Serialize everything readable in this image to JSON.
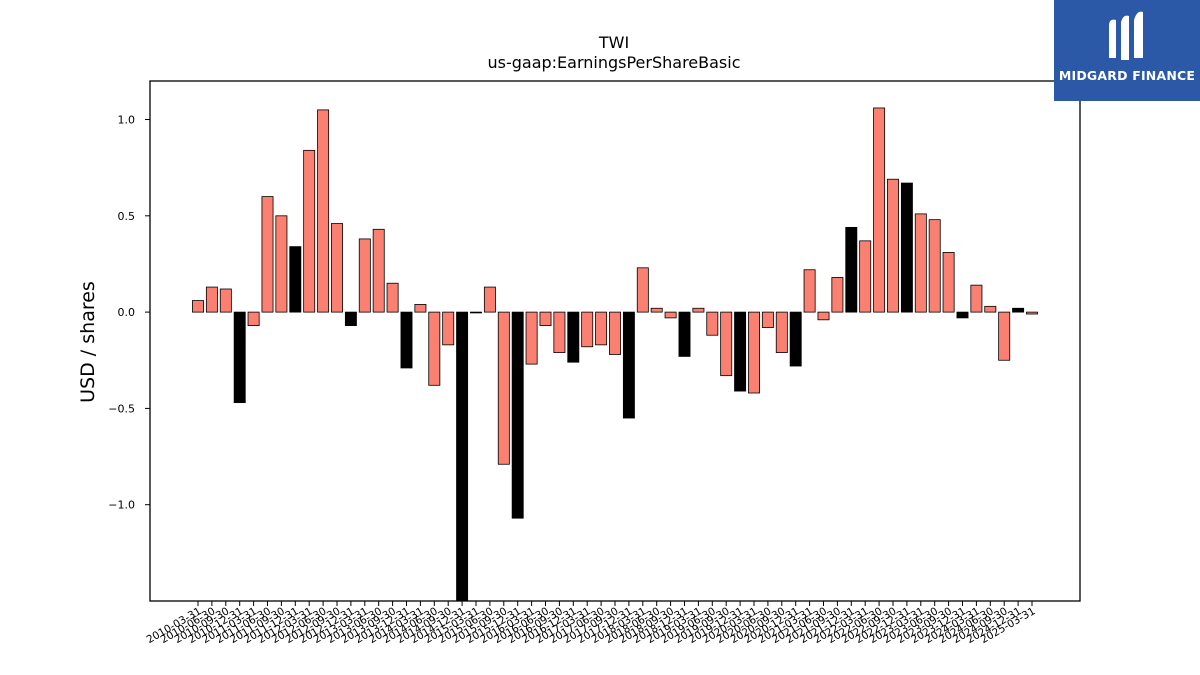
{
  "logo": {
    "text": "MIDGARD FINANCE",
    "icon": "midgard-m-logo-icon",
    "bg": "#2b59a8"
  },
  "chart_data": {
    "type": "bar",
    "title": "TWI",
    "subtitle": "us-gaap:EarningsPerShareBasic",
    "xlabel": "",
    "ylabel": "USD / shares",
    "ylim": [
      -1.5,
      1.2
    ],
    "yticks": [
      1.0,
      0.5,
      0.0,
      -0.5,
      -1.0
    ],
    "ytick_labels": [
      "1.0",
      "0.5",
      "0.0",
      "−0.5",
      "−1.0"
    ],
    "colors": {
      "quarter": "#fa8072",
      "annual": "#000000"
    },
    "grid": false,
    "legend": "none",
    "bars": [
      {
        "date": "2010-03-31",
        "value": 0.06,
        "kind": "quarter"
      },
      {
        "date": "2010-06-30",
        "value": 0.13,
        "kind": "quarter"
      },
      {
        "date": "2010-09-30",
        "value": 0.12,
        "kind": "quarter"
      },
      {
        "date": "2010-12-31",
        "value": -0.47,
        "kind": "annual"
      },
      {
        "date": "2011-03-31",
        "value": -0.07,
        "kind": "quarter"
      },
      {
        "date": "2011-06-30",
        "value": 0.6,
        "kind": "quarter"
      },
      {
        "date": "2011-09-30",
        "value": 0.5,
        "kind": "quarter"
      },
      {
        "date": "2011-12-31",
        "value": 0.34,
        "kind": "annual"
      },
      {
        "date": "2012-03-31",
        "value": 0.84,
        "kind": "quarter"
      },
      {
        "date": "2012-06-30",
        "value": 1.05,
        "kind": "quarter"
      },
      {
        "date": "2012-09-30",
        "value": 0.46,
        "kind": "quarter"
      },
      {
        "date": "2012-12-31",
        "value": -0.07,
        "kind": "annual"
      },
      {
        "date": "2013-03-31",
        "value": 0.38,
        "kind": "quarter"
      },
      {
        "date": "2013-06-30",
        "value": 0.43,
        "kind": "quarter"
      },
      {
        "date": "2013-09-30",
        "value": 0.15,
        "kind": "quarter"
      },
      {
        "date": "2013-12-31",
        "value": -0.29,
        "kind": "annual"
      },
      {
        "date": "2014-03-31",
        "value": 0.04,
        "kind": "quarter"
      },
      {
        "date": "2014-06-30",
        "value": -0.38,
        "kind": "quarter"
      },
      {
        "date": "2014-09-30",
        "value": -0.17,
        "kind": "quarter"
      },
      {
        "date": "2014-12-31",
        "value": -1.55,
        "kind": "annual"
      },
      {
        "date": "2015-03-31",
        "value": 0.0,
        "kind": "quarter"
      },
      {
        "date": "2015-06-30",
        "value": 0.13,
        "kind": "quarter"
      },
      {
        "date": "2015-09-30",
        "value": -0.79,
        "kind": "quarter"
      },
      {
        "date": "2015-12-31",
        "value": -1.07,
        "kind": "annual"
      },
      {
        "date": "2016-03-31",
        "value": -0.27,
        "kind": "quarter"
      },
      {
        "date": "2016-06-30",
        "value": -0.07,
        "kind": "quarter"
      },
      {
        "date": "2016-09-30",
        "value": -0.21,
        "kind": "quarter"
      },
      {
        "date": "2016-12-31",
        "value": -0.26,
        "kind": "annual"
      },
      {
        "date": "2017-03-31",
        "value": -0.18,
        "kind": "quarter"
      },
      {
        "date": "2017-06-30",
        "value": -0.17,
        "kind": "quarter"
      },
      {
        "date": "2017-09-30",
        "value": -0.22,
        "kind": "quarter"
      },
      {
        "date": "2017-12-31",
        "value": -0.55,
        "kind": "annual"
      },
      {
        "date": "2018-03-31",
        "value": 0.23,
        "kind": "quarter"
      },
      {
        "date": "2018-06-30",
        "value": 0.02,
        "kind": "quarter"
      },
      {
        "date": "2018-09-30",
        "value": -0.03,
        "kind": "quarter"
      },
      {
        "date": "2018-12-31",
        "value": -0.23,
        "kind": "annual"
      },
      {
        "date": "2019-03-31",
        "value": 0.02,
        "kind": "quarter"
      },
      {
        "date": "2019-06-30",
        "value": -0.12,
        "kind": "quarter"
      },
      {
        "date": "2019-09-30",
        "value": -0.33,
        "kind": "quarter"
      },
      {
        "date": "2019-12-31",
        "value": -0.41,
        "kind": "annual"
      },
      {
        "date": "2020-03-31",
        "value": -0.42,
        "kind": "quarter"
      },
      {
        "date": "2020-06-30",
        "value": -0.08,
        "kind": "quarter"
      },
      {
        "date": "2020-09-30",
        "value": -0.21,
        "kind": "quarter"
      },
      {
        "date": "2020-12-31",
        "value": -0.28,
        "kind": "annual"
      },
      {
        "date": "2021-03-31",
        "value": 0.22,
        "kind": "quarter"
      },
      {
        "date": "2021-06-30",
        "value": -0.04,
        "kind": "quarter"
      },
      {
        "date": "2021-09-30",
        "value": 0.18,
        "kind": "quarter"
      },
      {
        "date": "2021-12-31",
        "value": 0.44,
        "kind": "annual"
      },
      {
        "date": "2022-03-31",
        "value": 0.37,
        "kind": "quarter"
      },
      {
        "date": "2022-06-30",
        "value": 1.06,
        "kind": "quarter"
      },
      {
        "date": "2022-09-30",
        "value": 0.69,
        "kind": "quarter"
      },
      {
        "date": "2022-12-31",
        "value": 0.67,
        "kind": "annual"
      },
      {
        "date": "2023-03-31",
        "value": 0.51,
        "kind": "quarter"
      },
      {
        "date": "2023-06-30",
        "value": 0.48,
        "kind": "quarter"
      },
      {
        "date": "2023-09-30",
        "value": 0.31,
        "kind": "quarter"
      },
      {
        "date": "2023-12-31",
        "value": -0.03,
        "kind": "annual"
      },
      {
        "date": "2024-03-31",
        "value": 0.14,
        "kind": "quarter"
      },
      {
        "date": "2024-06-30",
        "value": 0.03,
        "kind": "quarter"
      },
      {
        "date": "2024-09-30",
        "value": -0.25,
        "kind": "quarter"
      },
      {
        "date": "2024-12-31",
        "value": 0.02,
        "kind": "annual"
      },
      {
        "date": "2025-03-31",
        "value": -0.01,
        "kind": "quarter"
      }
    ]
  }
}
